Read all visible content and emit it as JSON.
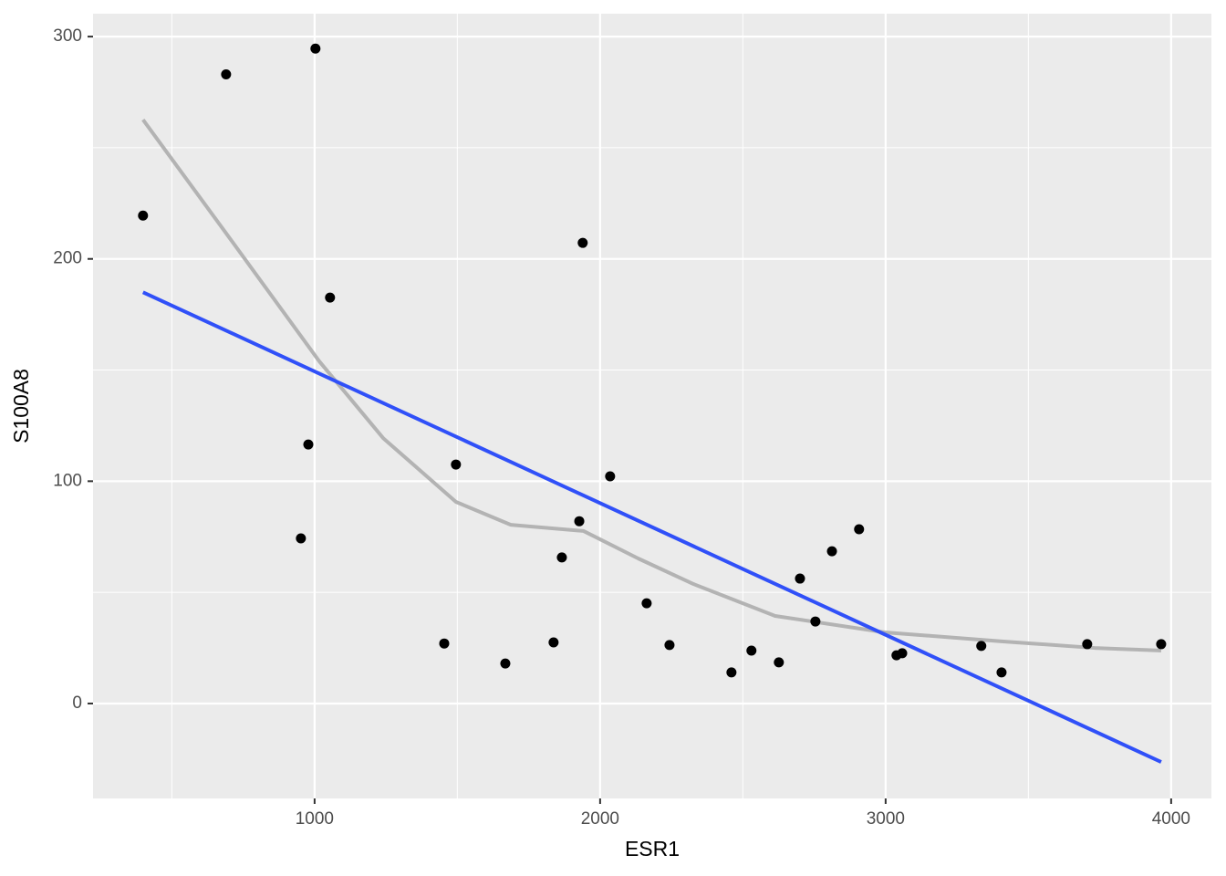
{
  "chart_data": {
    "type": "scatter",
    "x_label": "ESR1",
    "y_label": "S100A8",
    "xlim": [
      224,
      4141
    ],
    "ylim": [
      -42.7,
      310.3
    ],
    "xticks": [
      1000,
      2000,
      3000,
      4000
    ],
    "yticks": [
      0,
      100,
      200,
      300
    ],
    "grid": true,
    "minor_grid": true,
    "points": {
      "color": "#000000",
      "x": [
        399,
        690,
        1003,
        1054,
        978,
        952,
        1454,
        1495,
        1668,
        1837,
        1866,
        1927,
        1939,
        2035,
        2163,
        2243,
        2460,
        2530,
        2626,
        2700,
        2754,
        2812,
        2907,
        3038,
        3058,
        3335,
        3406,
        3706,
        3965
      ],
      "y": [
        219.5,
        283,
        294.6,
        182.6,
        116.5,
        74.3,
        27,
        107.5,
        18,
        27.5,
        65.7,
        82,
        207.2,
        102.2,
        45.1,
        26.3,
        14,
        23.8,
        18.5,
        56.2,
        36.9,
        68.5,
        78.4,
        21.7,
        22.6,
        25.9,
        14,
        26.7,
        26.7
      ]
    },
    "lines": [
      {
        "color": "#b3b3b3",
        "x": [
          399,
          696,
          1016,
          1240,
          1495,
          1687,
          1942,
          2134,
          2326,
          2613,
          2997,
          3412,
          3732,
          3965
        ],
        "y": [
          262.6,
          210.5,
          154,
          119.4,
          90.7,
          80.4,
          77.6,
          65.2,
          53.8,
          39.4,
          32,
          27.9,
          25,
          23.8
        ]
      },
      {
        "color": "#3050f8",
        "x": [
          399,
          3965
        ],
        "y": [
          185,
          -26.3
        ]
      }
    ]
  }
}
